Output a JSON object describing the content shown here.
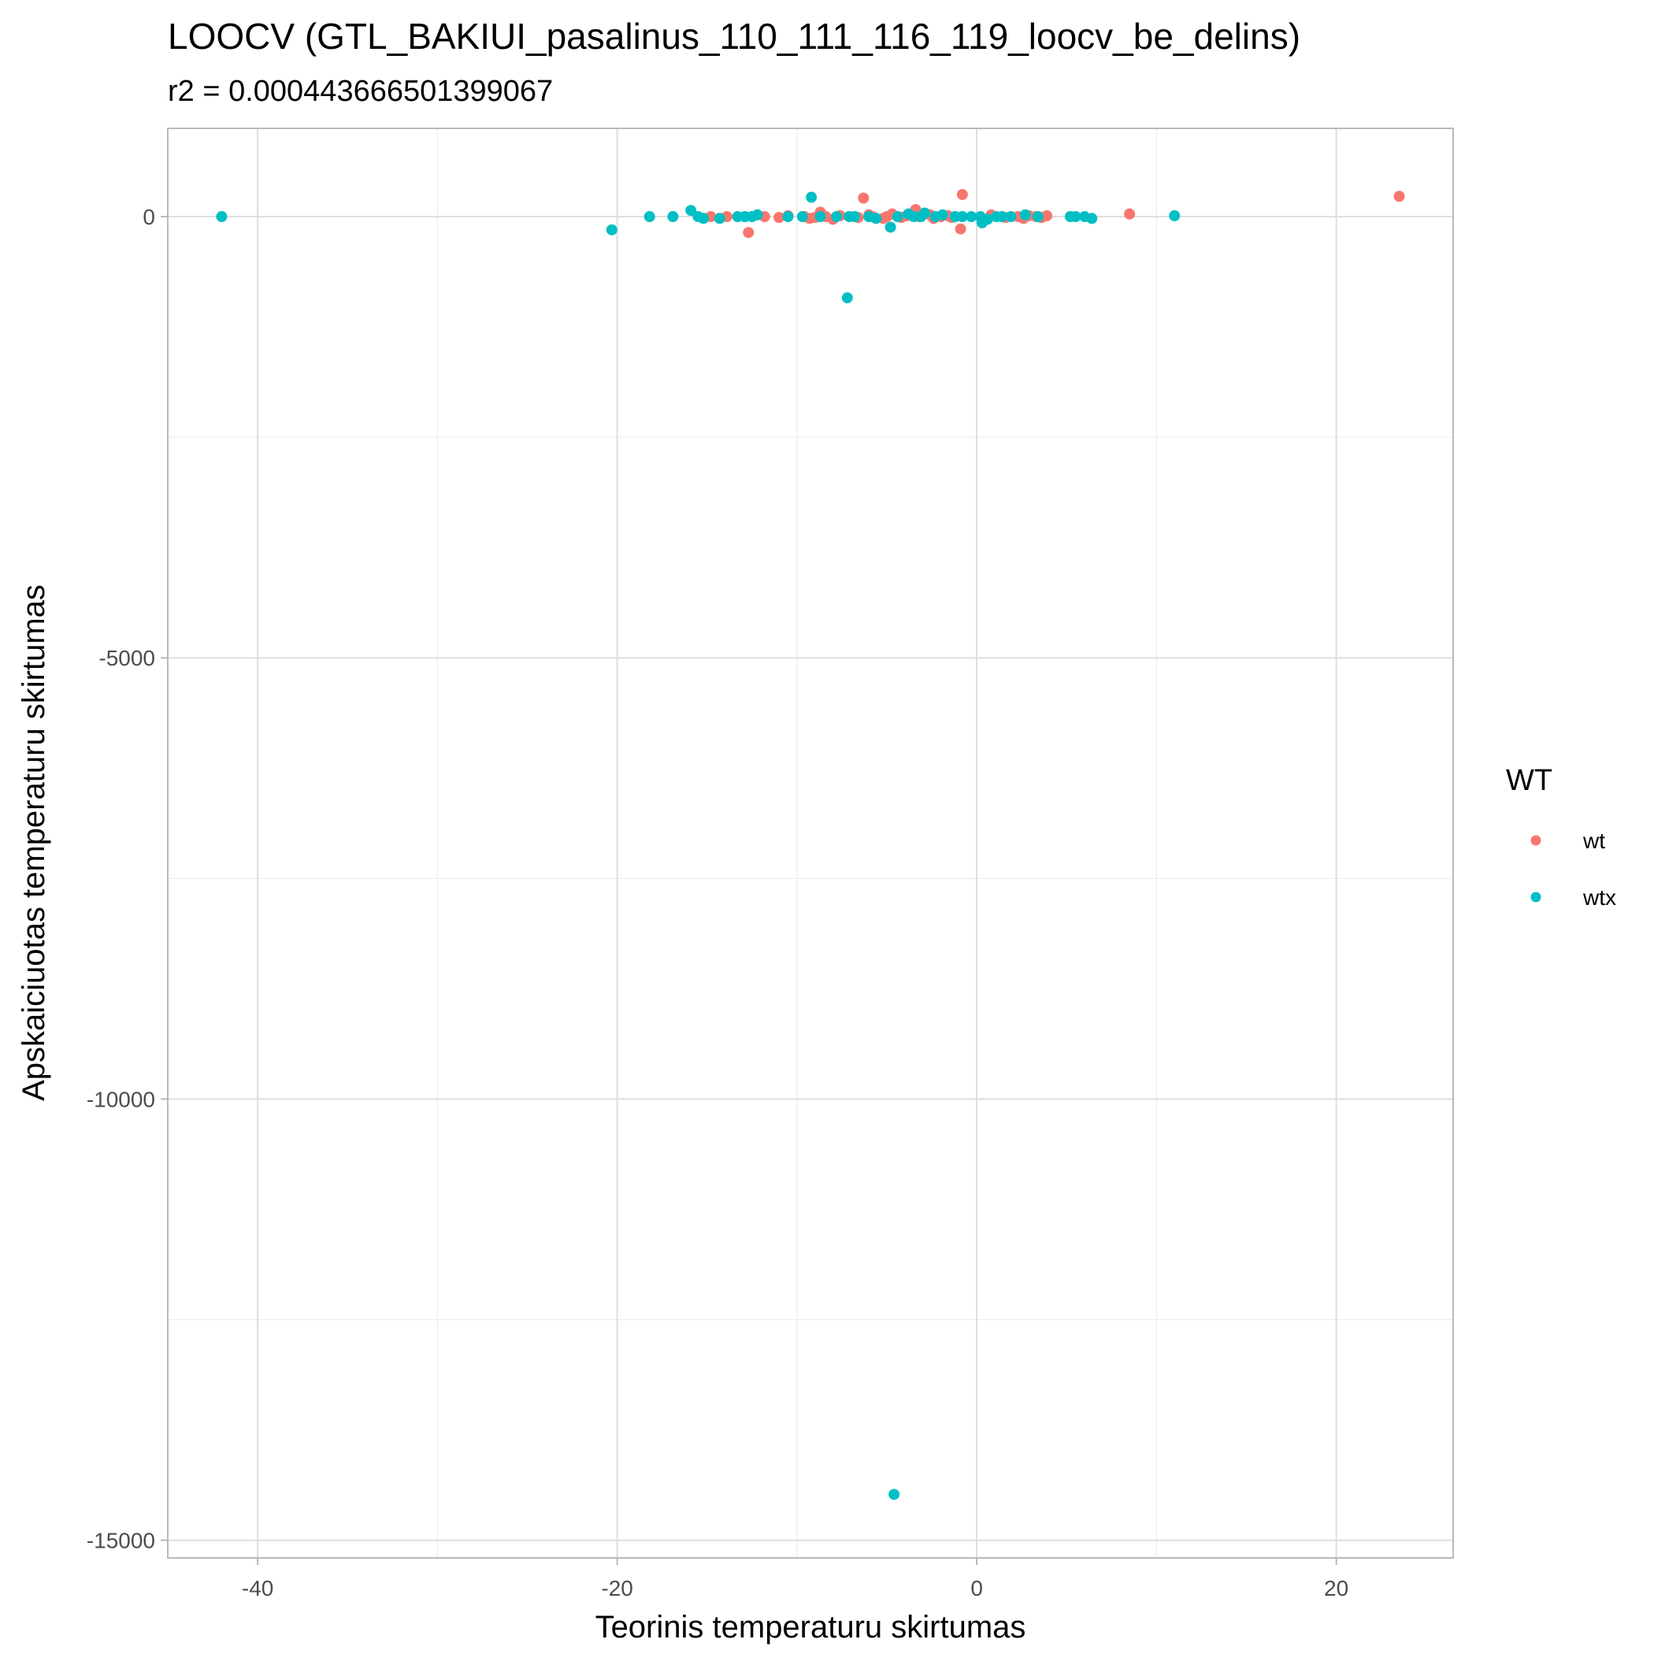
{
  "chart_data": {
    "type": "scatter",
    "title": "LOOCV (GTL_BAKIUI_pasalinus_110_111_116_119_loocv_be_delins)",
    "subtitle": "r2 = 0.000443666501399067",
    "xlabel": "Teorinis temperaturu skirtumas",
    "ylabel": "Apskaiciuotas temperaturu skirtumas",
    "xlim": [
      -45,
      26.5
    ],
    "ylim": [
      -15200,
      1000
    ],
    "x_ticks": [
      -40,
      -20,
      0,
      20
    ],
    "x_tick_labels": [
      "-40",
      "-20",
      "0",
      "20"
    ],
    "y_ticks": [
      -15000,
      -10000,
      -5000,
      0
    ],
    "y_tick_labels": [
      "-15000",
      "-10000",
      "-5000",
      "0"
    ],
    "x_minor": [
      -30,
      -10,
      10
    ],
    "y_minor": [
      -12500,
      -7500,
      -2500
    ],
    "grid": true,
    "legend": {
      "title": "WT",
      "position": "right"
    },
    "series": [
      {
        "name": "wt",
        "color": "#F8766D",
        "points": [
          [
            23.5,
            230
          ],
          [
            8.5,
            30
          ],
          [
            -0.8,
            250
          ],
          [
            -0.9,
            -140
          ],
          [
            -6.3,
            210
          ],
          [
            -12.7,
            -180
          ],
          [
            -3.4,
            80
          ],
          [
            -8.7,
            50
          ],
          [
            -14.8,
            0
          ],
          [
            -13.9,
            0
          ],
          [
            -12.9,
            0
          ],
          [
            -11.8,
            0
          ],
          [
            -11.0,
            -10
          ],
          [
            -10.5,
            10
          ],
          [
            -9.6,
            0
          ],
          [
            -9.3,
            -20
          ],
          [
            -9.0,
            -10
          ],
          [
            -8.4,
            0
          ],
          [
            -8.0,
            -30
          ],
          [
            -7.6,
            10
          ],
          [
            -6.6,
            -10
          ],
          [
            -6.0,
            20
          ],
          [
            -5.8,
            0
          ],
          [
            -5.2,
            -20
          ],
          [
            -5.0,
            0
          ],
          [
            -4.7,
            30
          ],
          [
            -4.2,
            -10
          ],
          [
            -3.9,
            10
          ],
          [
            -3.2,
            0
          ],
          [
            -2.6,
            20
          ],
          [
            -2.4,
            -20
          ],
          [
            -2.0,
            0
          ],
          [
            -1.6,
            10
          ],
          [
            -1.4,
            -10
          ],
          [
            0.8,
            20
          ],
          [
            1.6,
            -10
          ],
          [
            2.3,
            0
          ],
          [
            2.6,
            -20
          ],
          [
            2.9,
            10
          ],
          [
            3.3,
            0
          ],
          [
            3.6,
            -10
          ],
          [
            3.9,
            10
          ]
        ]
      },
      {
        "name": "wtx",
        "color": "#00BFC4",
        "points": [
          [
            -42.0,
            0
          ],
          [
            -20.3,
            -150
          ],
          [
            -18.2,
            0
          ],
          [
            -16.9,
            0
          ],
          [
            -15.9,
            70
          ],
          [
            -15.5,
            0
          ],
          [
            -15.2,
            -20
          ],
          [
            -14.3,
            -20
          ],
          [
            -13.3,
            0
          ],
          [
            -12.9,
            0
          ],
          [
            -12.5,
            0
          ],
          [
            -12.2,
            20
          ],
          [
            -10.5,
            0
          ],
          [
            -9.7,
            0
          ],
          [
            -9.2,
            220
          ],
          [
            -8.7,
            0
          ],
          [
            -7.8,
            0
          ],
          [
            -7.2,
            -920
          ],
          [
            -7.1,
            0
          ],
          [
            -6.8,
            0
          ],
          [
            -6.0,
            0
          ],
          [
            -5.6,
            -20
          ],
          [
            -4.8,
            -120
          ],
          [
            -4.6,
            -14480
          ],
          [
            -4.4,
            0
          ],
          [
            -3.8,
            30
          ],
          [
            -3.5,
            0
          ],
          [
            -3.1,
            0
          ],
          [
            -2.9,
            40
          ],
          [
            -2.3,
            0
          ],
          [
            -1.9,
            20
          ],
          [
            -1.2,
            0
          ],
          [
            -0.8,
            0
          ],
          [
            -0.3,
            0
          ],
          [
            0.2,
            0
          ],
          [
            0.3,
            -70
          ],
          [
            0.6,
            -30
          ],
          [
            1.1,
            0
          ],
          [
            1.4,
            0
          ],
          [
            1.9,
            0
          ],
          [
            2.7,
            20
          ],
          [
            3.4,
            0
          ],
          [
            5.2,
            0
          ],
          [
            5.5,
            0
          ],
          [
            6.0,
            0
          ],
          [
            6.4,
            -20
          ],
          [
            11.0,
            10
          ]
        ]
      }
    ]
  }
}
